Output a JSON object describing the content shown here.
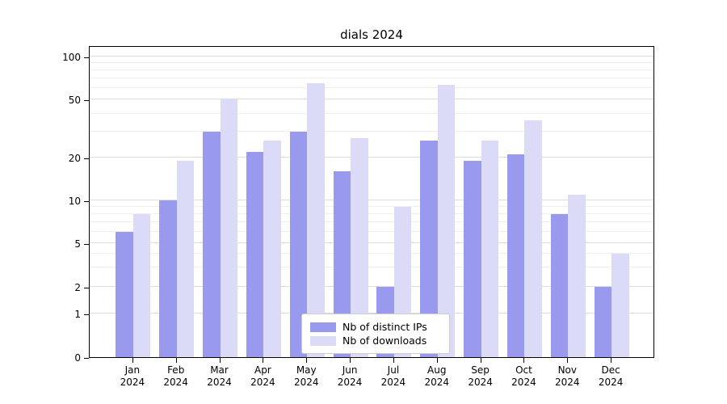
{
  "chart_data": {
    "type": "bar",
    "title": "dials 2024",
    "categories": [
      "Jan",
      "Feb",
      "Mar",
      "Apr",
      "May",
      "Jun",
      "Jul",
      "Aug",
      "Sep",
      "Oct",
      "Nov",
      "Dec"
    ],
    "category_year": "2024",
    "series": [
      {
        "name": "Nb of distinct IPs",
        "color": "#9999ed",
        "values": [
          6,
          10,
          30,
          22,
          30,
          16,
          2,
          26,
          19,
          21,
          8,
          2
        ]
      },
      {
        "name": "Nb of downloads",
        "color": "#dbdbf8",
        "values": [
          8,
          19,
          51,
          26,
          65,
          27,
          9,
          63,
          26,
          36,
          11,
          4
        ]
      }
    ],
    "yscale": "symlog",
    "yticks": [
      0,
      1,
      2,
      5,
      10,
      20,
      50,
      100
    ],
    "yminorticks": [
      3,
      4,
      6,
      7,
      8,
      9,
      30,
      40,
      60,
      70,
      80,
      90
    ],
    "ylim": [
      0,
      115
    ],
    "grid": true,
    "legend_position": "lower center"
  }
}
